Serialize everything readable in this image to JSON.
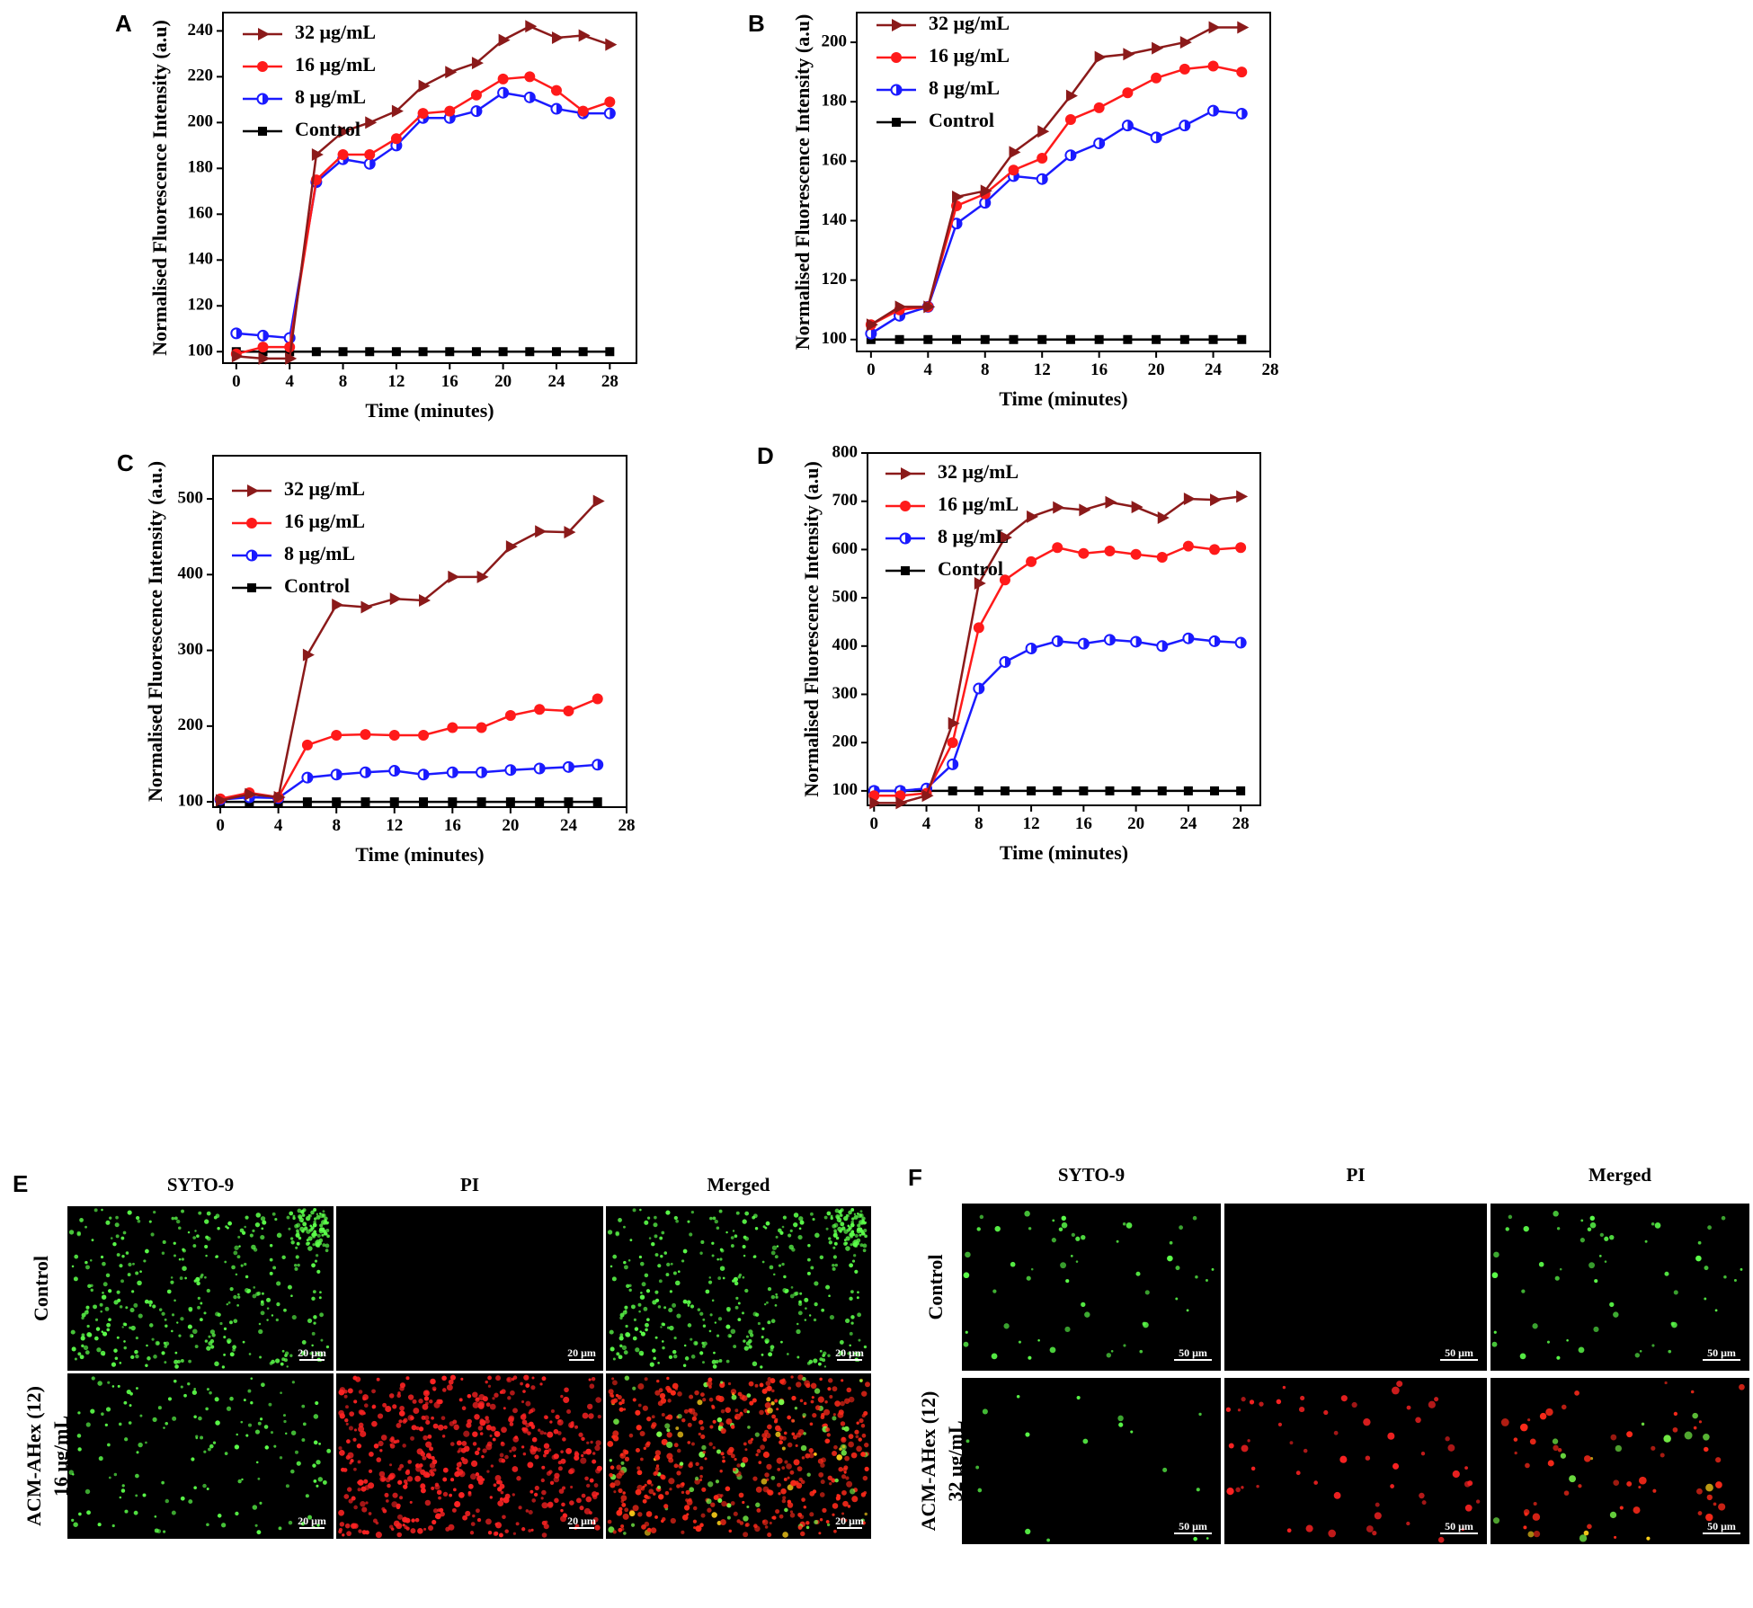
{
  "chart_data": [
    {
      "panel": "A",
      "type": "line",
      "xlabel": "Time (minutes)",
      "ylabel": "Normalised  Fluorescence Intensity (a.u)",
      "xlim": [
        -1,
        30
      ],
      "ylim": [
        95,
        248
      ],
      "xticks": [
        0,
        4,
        8,
        12,
        16,
        20,
        24,
        28
      ],
      "yticks": [
        100,
        120,
        140,
        160,
        180,
        200,
        220,
        240
      ],
      "x": [
        0,
        2,
        4,
        6,
        8,
        10,
        12,
        14,
        16,
        18,
        20,
        22,
        24,
        26,
        28
      ],
      "series": [
        {
          "name": "32 μg/mL",
          "color": "#8B1A1A",
          "marker": "triangle",
          "values": [
            98,
            97,
            97,
            186,
            196,
            200,
            205,
            216,
            222,
            226,
            236,
            242,
            237,
            238,
            234
          ]
        },
        {
          "name": "16 μg/mL",
          "color": "#FF1A1A",
          "marker": "circle",
          "values": [
            99,
            102,
            102,
            175,
            186,
            186,
            193,
            204,
            205,
            212,
            219,
            220,
            214,
            205,
            209
          ]
        },
        {
          "name": "8 μg/mL",
          "color": "#1A1AFF",
          "marker": "halfcircle",
          "values": [
            108,
            107,
            106,
            174,
            184,
            182,
            190,
            202,
            202,
            205,
            213,
            211,
            206,
            204,
            204
          ]
        },
        {
          "name": "Control",
          "color": "#000000",
          "marker": "square",
          "values": [
            100,
            100,
            100,
            100,
            100,
            100,
            100,
            100,
            100,
            100,
            100,
            100,
            100,
            100,
            100
          ]
        }
      ]
    },
    {
      "panel": "B",
      "type": "line",
      "xlabel": "Time (minutes)",
      "ylabel": "Normalised  Fluorescence Intensity (a.u)",
      "xlim": [
        -1,
        28
      ],
      "ylim": [
        96,
        210
      ],
      "xticks": [
        0,
        4,
        8,
        12,
        16,
        20,
        24,
        28
      ],
      "yticks": [
        100,
        120,
        140,
        160,
        180,
        200
      ],
      "x": [
        0,
        2,
        4,
        6,
        8,
        10,
        12,
        14,
        16,
        18,
        20,
        22,
        24,
        26
      ],
      "series": [
        {
          "name": "32 μg/mL",
          "color": "#8B1A1A",
          "marker": "triangle",
          "values": [
            105,
            111,
            111,
            148,
            150,
            163,
            170,
            182,
            195,
            196,
            198,
            200,
            205,
            205
          ]
        },
        {
          "name": "16 μg/mL",
          "color": "#FF1A1A",
          "marker": "circle",
          "values": [
            105,
            110,
            111,
            145,
            149,
            157,
            161,
            174,
            178,
            183,
            188,
            191,
            192,
            190
          ]
        },
        {
          "name": "8 μg/mL",
          "color": "#1A1AFF",
          "marker": "halfcircle",
          "values": [
            102,
            108,
            111,
            139,
            146,
            155,
            154,
            162,
            166,
            172,
            168,
            172,
            177,
            176
          ]
        },
        {
          "name": "Control",
          "color": "#000000",
          "marker": "square",
          "values": [
            100,
            100,
            100,
            100,
            100,
            100,
            100,
            100,
            100,
            100,
            100,
            100,
            100,
            100
          ]
        }
      ]
    },
    {
      "panel": "C",
      "type": "line",
      "xlabel": "Time (minutes)",
      "ylabel": "Normalised Fluorescence Intensity (a.u.)",
      "xlim": [
        -0.5,
        28
      ],
      "ylim": [
        93,
        557
      ],
      "xticks": [
        0,
        4,
        8,
        12,
        16,
        20,
        24,
        28
      ],
      "yticks": [
        100,
        200,
        300,
        400,
        500
      ],
      "x": [
        0,
        2,
        4,
        6,
        8,
        10,
        12,
        14,
        16,
        18,
        20,
        22,
        24,
        26
      ],
      "series": [
        {
          "name": "32 μg/mL",
          "color": "#8B1A1A",
          "marker": "triangle",
          "values": [
            102,
            110,
            106,
            294,
            360,
            357,
            368,
            366,
            397,
            397,
            437,
            457,
            456,
            497
          ]
        },
        {
          "name": "16 μg/mL",
          "color": "#FF1A1A",
          "marker": "circle",
          "values": [
            104,
            112,
            106,
            175,
            188,
            189,
            188,
            188,
            198,
            198,
            214,
            222,
            220,
            236
          ]
        },
        {
          "name": "8 μg/mL",
          "color": "#1A1AFF",
          "marker": "halfcircle",
          "values": [
            103,
            106,
            105,
            132,
            136,
            139,
            141,
            136,
            139,
            139,
            142,
            144,
            146,
            149
          ]
        },
        {
          "name": "Control",
          "color": "#000000",
          "marker": "square",
          "values": [
            100,
            100,
            100,
            100,
            100,
            100,
            100,
            100,
            100,
            100,
            100,
            100,
            100,
            100
          ]
        }
      ]
    },
    {
      "panel": "D",
      "type": "line",
      "xlabel": "Time (minutes)",
      "ylabel": "Normalised  Fluorescence Intensity (a.u)",
      "xlim": [
        -0.5,
        29.5
      ],
      "ylim": [
        70,
        800
      ],
      "xticks": [
        0,
        4,
        8,
        12,
        16,
        20,
        24,
        28
      ],
      "yticks": [
        100,
        200,
        300,
        400,
        500,
        600,
        700,
        800
      ],
      "x": [
        0,
        2,
        4,
        6,
        8,
        10,
        12,
        14,
        16,
        18,
        20,
        22,
        24,
        26,
        28
      ],
      "series": [
        {
          "name": "32 μg/mL",
          "color": "#8B1A1A",
          "marker": "triangle",
          "values": [
            75,
            75,
            90,
            240,
            530,
            625,
            668,
            687,
            682,
            698,
            688,
            666,
            705,
            703,
            710
          ]
        },
        {
          "name": "16 μg/mL",
          "color": "#FF1A1A",
          "marker": "circle",
          "values": [
            90,
            90,
            95,
            200,
            438,
            537,
            575,
            604,
            592,
            597,
            590,
            584,
            607,
            600,
            604
          ]
        },
        {
          "name": "8 μg/mL",
          "color": "#1A1AFF",
          "marker": "halfcircle",
          "values": [
            100,
            100,
            105,
            155,
            312,
            367,
            395,
            410,
            405,
            413,
            409,
            400,
            416,
            410,
            407
          ]
        },
        {
          "name": "Control",
          "color": "#000000",
          "marker": "square",
          "values": [
            100,
            100,
            100,
            100,
            100,
            100,
            100,
            100,
            100,
            100,
            100,
            100,
            100,
            100,
            100
          ]
        }
      ]
    }
  ],
  "microscopy": [
    {
      "panel": "E",
      "columns": [
        "SYTO-9",
        "PI",
        "Merged"
      ],
      "rows": [
        {
          "label_lines": [
            "Control"
          ]
        },
        {
          "label_lines": [
            "ACM-AHex (12)",
            "16 μg/mL"
          ]
        }
      ],
      "scale_bar": "20 μm"
    },
    {
      "panel": "F",
      "columns": [
        "SYTO-9",
        "PI",
        "Merged"
      ],
      "rows": [
        {
          "label_lines": [
            "Control"
          ]
        },
        {
          "label_lines": [
            "ACM-AHex (12)",
            "32 μg/mL"
          ]
        }
      ],
      "scale_bar": "50 μm"
    }
  ]
}
